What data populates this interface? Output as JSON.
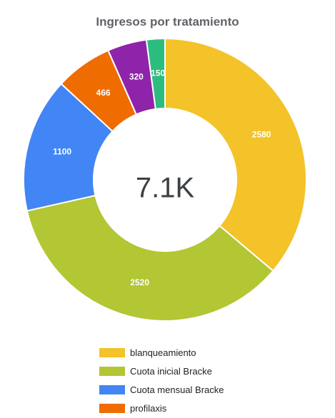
{
  "chart_data": {
    "type": "pie",
    "title": "Ingresos por tratamiento",
    "center_label": "7.1K",
    "categories": [
      "blanqueamiento",
      "Cuota inicial Bracke",
      "Cuota mensual Bracke",
      "profilaxis",
      "",
      ""
    ],
    "values": [
      2580,
      2520,
      1100,
      466,
      320,
      150
    ],
    "data_labels": [
      "2580",
      "2520",
      "1100",
      "466",
      "320",
      "150"
    ],
    "colors": [
      "#f4c229",
      "#b3c634",
      "#4285f4",
      "#ef6c00",
      "#8e24aa",
      "#2cbc7e"
    ],
    "donut": true,
    "legend_position": "bottom"
  },
  "legend": {
    "items": [
      {
        "label": "blanqueamiento",
        "color": "#f4c229"
      },
      {
        "label": "Cuota inicial Bracke",
        "color": "#b3c634"
      },
      {
        "label": "Cuota mensual Bracke",
        "color": "#4285f4"
      },
      {
        "label": "profilaxis",
        "color": "#ef6c00"
      }
    ]
  }
}
